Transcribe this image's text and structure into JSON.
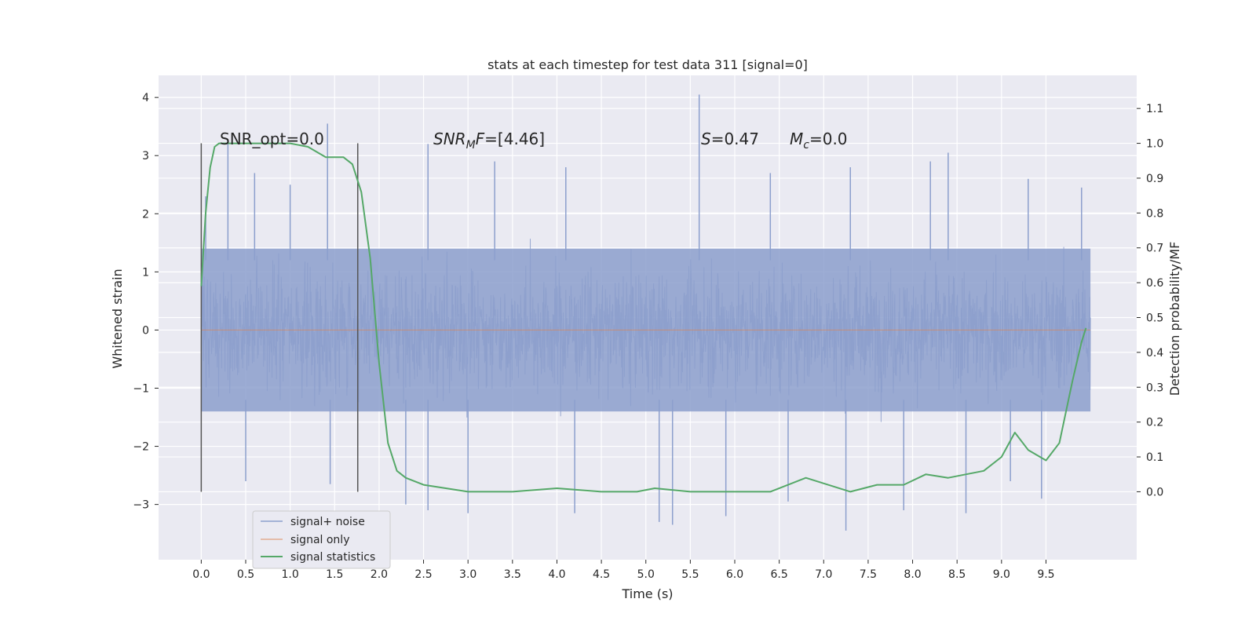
{
  "chart_data": {
    "type": "line",
    "title": "stats at each timestep for test data 311 [signal=0]",
    "xlabel": "Time (s)",
    "ylabel": "Whitened strain",
    "ylabel_right": "Detection probability/MF",
    "xlim": [
      -0.48,
      10.52
    ],
    "ylim": [
      -3.95,
      4.38
    ],
    "ylim_right": [
      -0.195,
      1.195
    ],
    "xticks": [
      "0.0",
      "0.5",
      "1.0",
      "1.5",
      "2.0",
      "2.5",
      "3.0",
      "3.5",
      "4.0",
      "4.5",
      "5.0",
      "5.5",
      "6.0",
      "6.5",
      "7.0",
      "7.5",
      "8.0",
      "8.5",
      "9.0",
      "9.5"
    ],
    "yticks_left": [
      4,
      3,
      2,
      1,
      0,
      -1,
      -2,
      -3
    ],
    "yticks_left_labels": [
      "4",
      "3",
      "2",
      "1",
      "0",
      "−1",
      "−2",
      "−3"
    ],
    "yticks_right": [
      1.1,
      1.0,
      0.9,
      0.8,
      0.7,
      0.6,
      0.5,
      0.4,
      0.3,
      0.2,
      0.1,
      0.0
    ],
    "yticks_right_labels": [
      "1.1",
      "1.0",
      "0.9",
      "0.8",
      "0.7",
      "0.6",
      "0.5",
      "0.4",
      "0.3",
      "0.2",
      "0.1",
      "0.0"
    ],
    "grid": true,
    "legend": {
      "location": "lower-left",
      "entries": [
        {
          "label": "signal+ noise",
          "color": "#8c9fcd"
        },
        {
          "label": "signal only",
          "color": "#dd8452"
        },
        {
          "label": "signal statistics",
          "color": "#55a868"
        }
      ]
    },
    "annotations": {
      "snr_opt": "SNR_opt=0.0",
      "snr_mf_italic": "SNR",
      "snr_mf_sub": "M",
      "snr_mf_tail_italic": "F",
      "snr_mf_value": "=[4.46]",
      "s_italic": "S",
      "s_value": "=0.47",
      "mc_italic": "M",
      "mc_sub": "c",
      "mc_value": "=0.0"
    },
    "vertical_markers_x": [
      0.0,
      1.76
    ],
    "noise_series": {
      "name": "signal+ noise",
      "x_range": [
        0.0,
        10.0
      ],
      "core_band": [
        -1.4,
        1.4
      ],
      "peaks_upper": [
        [
          0.05,
          2.3
        ],
        [
          0.3,
          3.2
        ],
        [
          0.6,
          2.7
        ],
        [
          1.0,
          2.5
        ],
        [
          1.42,
          3.55
        ],
        [
          2.55,
          3.2
        ],
        [
          3.3,
          2.9
        ],
        [
          4.1,
          2.8
        ],
        [
          5.6,
          4.05
        ],
        [
          6.4,
          2.7
        ],
        [
          7.3,
          2.8
        ],
        [
          8.2,
          2.9
        ],
        [
          8.4,
          3.05
        ],
        [
          9.3,
          2.6
        ],
        [
          9.9,
          2.45
        ]
      ],
      "peaks_lower": [
        [
          0.5,
          -2.6
        ],
        [
          1.45,
          -2.65
        ],
        [
          2.3,
          -3.0
        ],
        [
          2.55,
          -3.1
        ],
        [
          3.0,
          -3.15
        ],
        [
          4.2,
          -3.15
        ],
        [
          5.15,
          -3.3
        ],
        [
          5.3,
          -3.35
        ],
        [
          5.9,
          -3.2
        ],
        [
          6.6,
          -2.95
        ],
        [
          7.25,
          -3.45
        ],
        [
          7.9,
          -3.1
        ],
        [
          8.6,
          -3.15
        ],
        [
          9.1,
          -2.6
        ],
        [
          9.45,
          -2.9
        ]
      ]
    },
    "signal_only": {
      "name": "signal only",
      "x": [
        0.0,
        10.0
      ],
      "y": [
        0.0,
        0.0
      ]
    },
    "signal_statistics": {
      "name": "signal statistics",
      "x": [
        0.0,
        0.05,
        0.1,
        0.15,
        0.2,
        0.3,
        0.5,
        0.8,
        1.0,
        1.2,
        1.4,
        1.6,
        1.7,
        1.8,
        1.9,
        2.0,
        2.1,
        2.2,
        2.3,
        2.5,
        3.0,
        3.5,
        4.0,
        4.5,
        4.9,
        5.1,
        5.5,
        6.0,
        6.4,
        6.8,
        7.3,
        7.6,
        7.9,
        8.15,
        8.4,
        8.8,
        9.0,
        9.15,
        9.3,
        9.5,
        9.65,
        9.8,
        9.9,
        9.95
      ],
      "y": [
        0.59,
        0.8,
        0.93,
        0.99,
        1.0,
        1.0,
        1.0,
        1.0,
        1.0,
        0.99,
        0.96,
        0.96,
        0.94,
        0.86,
        0.67,
        0.37,
        0.14,
        0.06,
        0.04,
        0.02,
        0.0,
        0.0,
        0.01,
        0.0,
        0.0,
        0.01,
        0.0,
        0.0,
        0.0,
        0.04,
        0.0,
        0.02,
        0.02,
        0.05,
        0.04,
        0.06,
        0.1,
        0.17,
        0.12,
        0.09,
        0.14,
        0.32,
        0.43,
        0.47
      ]
    }
  }
}
